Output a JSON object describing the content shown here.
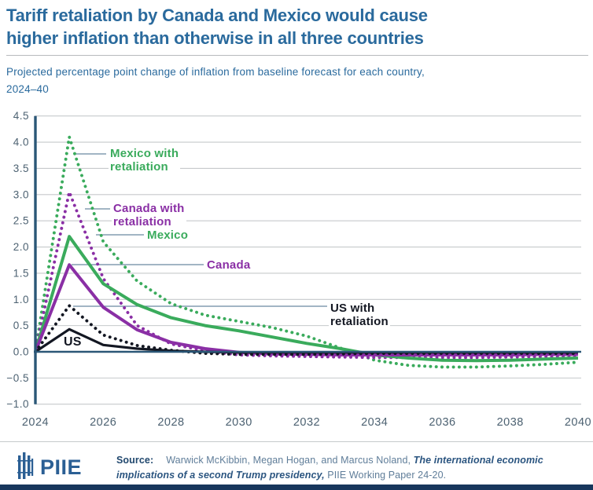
{
  "header": {
    "title_line1": "Tariff retaliation by Canada and Mexico would cause",
    "title_line2": "higher inflation than otherwise in all three countries",
    "subtitle_line1": "Projected percentage point change of inflation from baseline forecast for each country,",
    "subtitle_line2": "2024–40"
  },
  "chart_data": {
    "type": "line",
    "title": "Tariff retaliation by Canada and Mexico would cause higher inflation than otherwise in all three countries",
    "subtitle": "Projected percentage point change of inflation from baseline forecast for each country, 2024–40",
    "grid": true,
    "legend_position": "inline-annotations",
    "ylim": [
      -1.0,
      4.5
    ],
    "xlim": [
      2024,
      2040
    ],
    "x": [
      2024,
      2025,
      2026,
      2027,
      2028,
      2029,
      2030,
      2031,
      2032,
      2033,
      2034,
      2035,
      2036,
      2037,
      2038,
      2039,
      2040
    ],
    "xticks": [
      2024,
      2026,
      2028,
      2030,
      2032,
      2034,
      2036,
      2038,
      2040
    ],
    "yticks": [
      4.5,
      4.0,
      3.5,
      3.0,
      2.5,
      2.0,
      1.5,
      1.0,
      0.5,
      0.0,
      -0.5,
      -1.0
    ],
    "ytick_labels": [
      "4.5",
      "4.0",
      "3.5",
      "3.0",
      "2.5",
      "2.0",
      "1.5",
      "1.0",
      "0.5",
      "0.0",
      "−0.5",
      "−1.0"
    ],
    "series": [
      {
        "name": "Mexico with retaliation",
        "color": "#3aab5c",
        "style": "dotted",
        "values": [
          0,
          4.1,
          2.1,
          1.35,
          0.92,
          0.7,
          0.58,
          0.46,
          0.3,
          0.07,
          -0.16,
          -0.26,
          -0.29,
          -0.29,
          -0.27,
          -0.24,
          -0.2
        ]
      },
      {
        "name": "Canada with retaliation",
        "color": "#8a2fa5",
        "style": "dotted",
        "values": [
          0,
          3.05,
          1.4,
          0.5,
          0.15,
          0.02,
          -0.06,
          -0.08,
          -0.09,
          -0.1,
          -0.11,
          -0.11,
          -0.11,
          -0.11,
          -0.1,
          -0.09,
          -0.08
        ]
      },
      {
        "name": "Mexico",
        "color": "#3aab5c",
        "style": "solid",
        "values": [
          0,
          2.2,
          1.3,
          0.9,
          0.65,
          0.5,
          0.4,
          0.28,
          0.16,
          0.06,
          -0.06,
          -0.12,
          -0.16,
          -0.17,
          -0.16,
          -0.14,
          -0.12
        ]
      },
      {
        "name": "Canada",
        "color": "#8a2fa5",
        "style": "solid",
        "values": [
          0,
          1.66,
          0.85,
          0.42,
          0.18,
          0.06,
          -0.01,
          -0.04,
          -0.05,
          -0.06,
          -0.06,
          -0.06,
          -0.06,
          -0.06,
          -0.06,
          -0.05,
          -0.05
        ]
      },
      {
        "name": "US with retaliation",
        "color": "#131722",
        "style": "dotted",
        "values": [
          0,
          0.88,
          0.32,
          0.12,
          0.03,
          -0.03,
          -0.05,
          -0.05,
          -0.05,
          -0.04,
          -0.03,
          -0.03,
          -0.03,
          -0.03,
          -0.03,
          -0.03,
          -0.03
        ]
      },
      {
        "name": "US",
        "color": "#131722",
        "style": "solid",
        "values": [
          0,
          0.43,
          0.13,
          0.06,
          0.02,
          0,
          -0.01,
          -0.01,
          -0.01,
          -0.01,
          -0.01,
          -0.01,
          -0.01,
          -0.01,
          -0.01,
          -0.01,
          -0.01
        ]
      }
    ]
  },
  "annotations": {
    "mexico_retaliation": {
      "text": "Mexico with\nretaliation"
    },
    "canada_retaliation": {
      "text": "Canada with\nretaliation"
    },
    "mexico": {
      "text": "Mexico"
    },
    "canada": {
      "text": "Canada"
    },
    "us_retaliation": {
      "text": "US with\nretaliation"
    },
    "us": {
      "text": "US"
    }
  },
  "footer": {
    "logo_text": "PIIE",
    "source_label": "Source:",
    "source_text_regular": "Warwick McKibbin, Megan Hogan, and Marcus Noland, ",
    "source_text_italic": "The international economic implications of a second Trump presidency,",
    "source_text_end": " PIIE Working Paper 24-20."
  },
  "colors": {
    "title_blue": "#2a6a9d",
    "axis_navy": "#2b5777",
    "grid_gray": "#c6c9cb",
    "tick_slate": "#4d6272",
    "green": "#3aab5c",
    "purple": "#8a2fa5",
    "black": "#131722",
    "leader_gray": "#6b89a0",
    "footer_bar_navy": "#17365c",
    "logo_blue": "#2b5f94"
  }
}
